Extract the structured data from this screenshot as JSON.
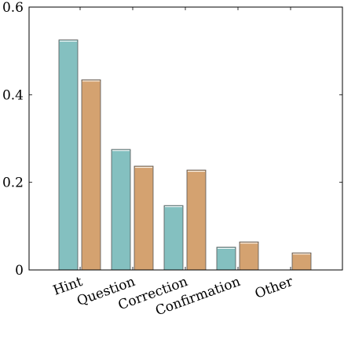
{
  "chart_data": {
    "type": "bar",
    "categories": [
      "Hint",
      "Question",
      "Correction",
      "Confirmation",
      "Other"
    ],
    "series": [
      {
        "values": [
          0.525,
          0.275,
          0.147,
          0.052,
          0.0
        ]
      },
      {
        "values": [
          0.434,
          0.237,
          0.228,
          0.064,
          0.039
        ]
      }
    ],
    "colors": [
      "#84c0c0",
      "#d4a270"
    ],
    "ylim": [
      0,
      0.6
    ],
    "yticks": [
      "0",
      "0.2",
      "0.4",
      "0.6"
    ],
    "grid": false,
    "title": "",
    "xlabel": "",
    "ylabel": ""
  }
}
